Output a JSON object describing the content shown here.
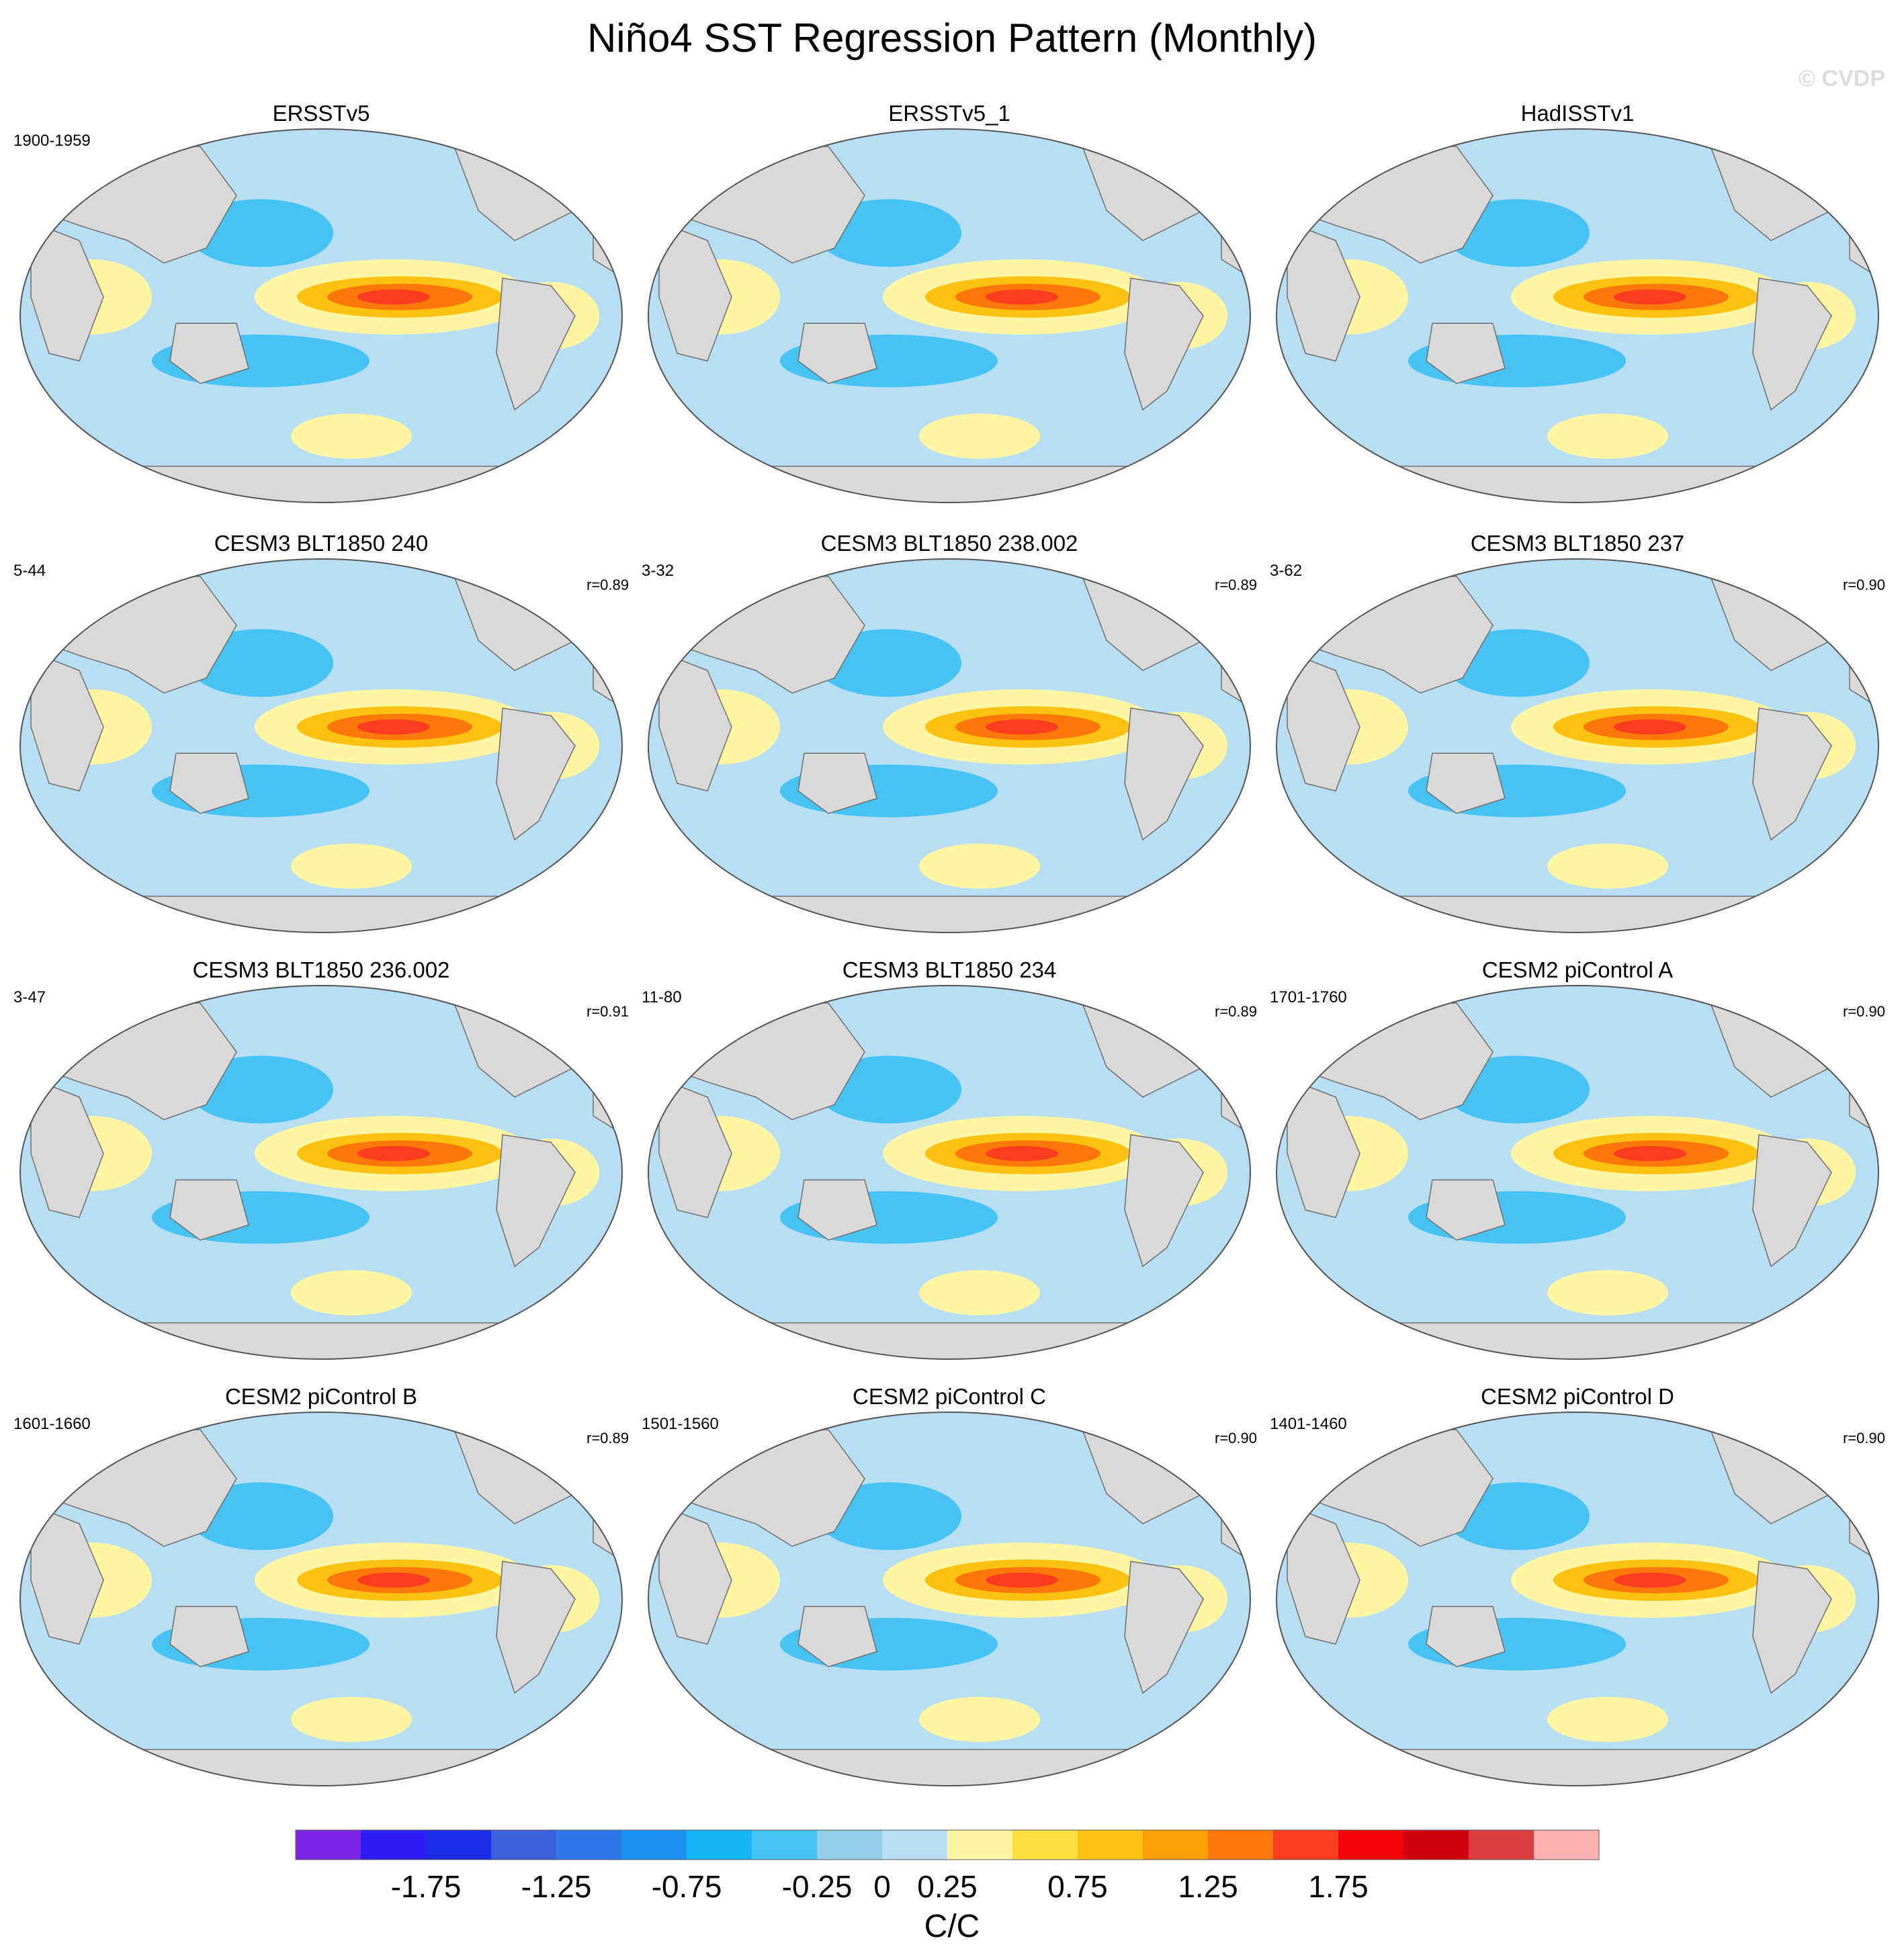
{
  "title": "Niño4 SST Regression Pattern (Monthly)",
  "watermark": "© CVDP",
  "colors": {
    "land": "#d9d9d9",
    "coast": "#6f6f6f",
    "outline": "#555555"
  },
  "chart_data": {
    "type": "heatmap",
    "projection": "Robinson global map, Pacific-centred",
    "panels": [
      {
        "title": "ERSSTv5",
        "period": "1900-1959",
        "r": ""
      },
      {
        "title": "ERSSTv5_1",
        "period": "",
        "r": ""
      },
      {
        "title": "HadISSTv1",
        "period": "",
        "r": ""
      },
      {
        "title": "CESM3 BLT1850 240",
        "period": "5-44",
        "r": "r=0.89"
      },
      {
        "title": "CESM3 BLT1850 238.002",
        "period": "3-32",
        "r": "r=0.89"
      },
      {
        "title": "CESM3 BLT1850 237",
        "period": "3-62",
        "r": "r=0.90"
      },
      {
        "title": "CESM3 BLT1850 236.002",
        "period": "3-47",
        "r": "r=0.91"
      },
      {
        "title": "CESM3 BLT1850 234",
        "period": "11-80",
        "r": "r=0.89"
      },
      {
        "title": "CESM2 piControl A",
        "period": "1701-1760",
        "r": "r=0.90"
      },
      {
        "title": "CESM2 piControl B",
        "period": "1601-1660",
        "r": "r=0.89"
      },
      {
        "title": "CESM2 piControl C",
        "period": "1501-1560",
        "r": "r=0.90"
      },
      {
        "title": "CESM2 piControl D",
        "period": "1401-1460",
        "r": "r=0.90"
      }
    ],
    "colorbar": {
      "unit": "C/C",
      "levels": [
        -2.0,
        -1.75,
        -1.5,
        -1.25,
        -1.0,
        -0.75,
        -0.5,
        -0.25,
        0,
        0.25,
        0.5,
        0.75,
        1.0,
        1.25,
        1.5,
        1.75,
        2.0
      ],
      "colors": [
        "#7d26e8",
        "#2c1ef5",
        "#1c2be6",
        "#3a5fdc",
        "#2e78eb",
        "#1c93f2",
        "#14b4f5",
        "#46c3f3",
        "#93cbe9",
        "#b7def2",
        "#fff6a3",
        "#fde03f",
        "#fdc111",
        "#fd9f06",
        "#fd780a",
        "#fb3c1e",
        "#f60309",
        "#cf0410",
        "#d93d3d",
        "#ffb0b2"
      ],
      "tick_values": [
        -1.75,
        -1.25,
        -0.75,
        -0.25,
        0,
        0.25,
        0.75,
        1.25,
        1.75
      ],
      "tick_labels": [
        "-1.75",
        "-1.25",
        "-0.75",
        "-0.25",
        "0",
        "0.25",
        "0.75",
        "1.25",
        "1.75"
      ]
    }
  }
}
